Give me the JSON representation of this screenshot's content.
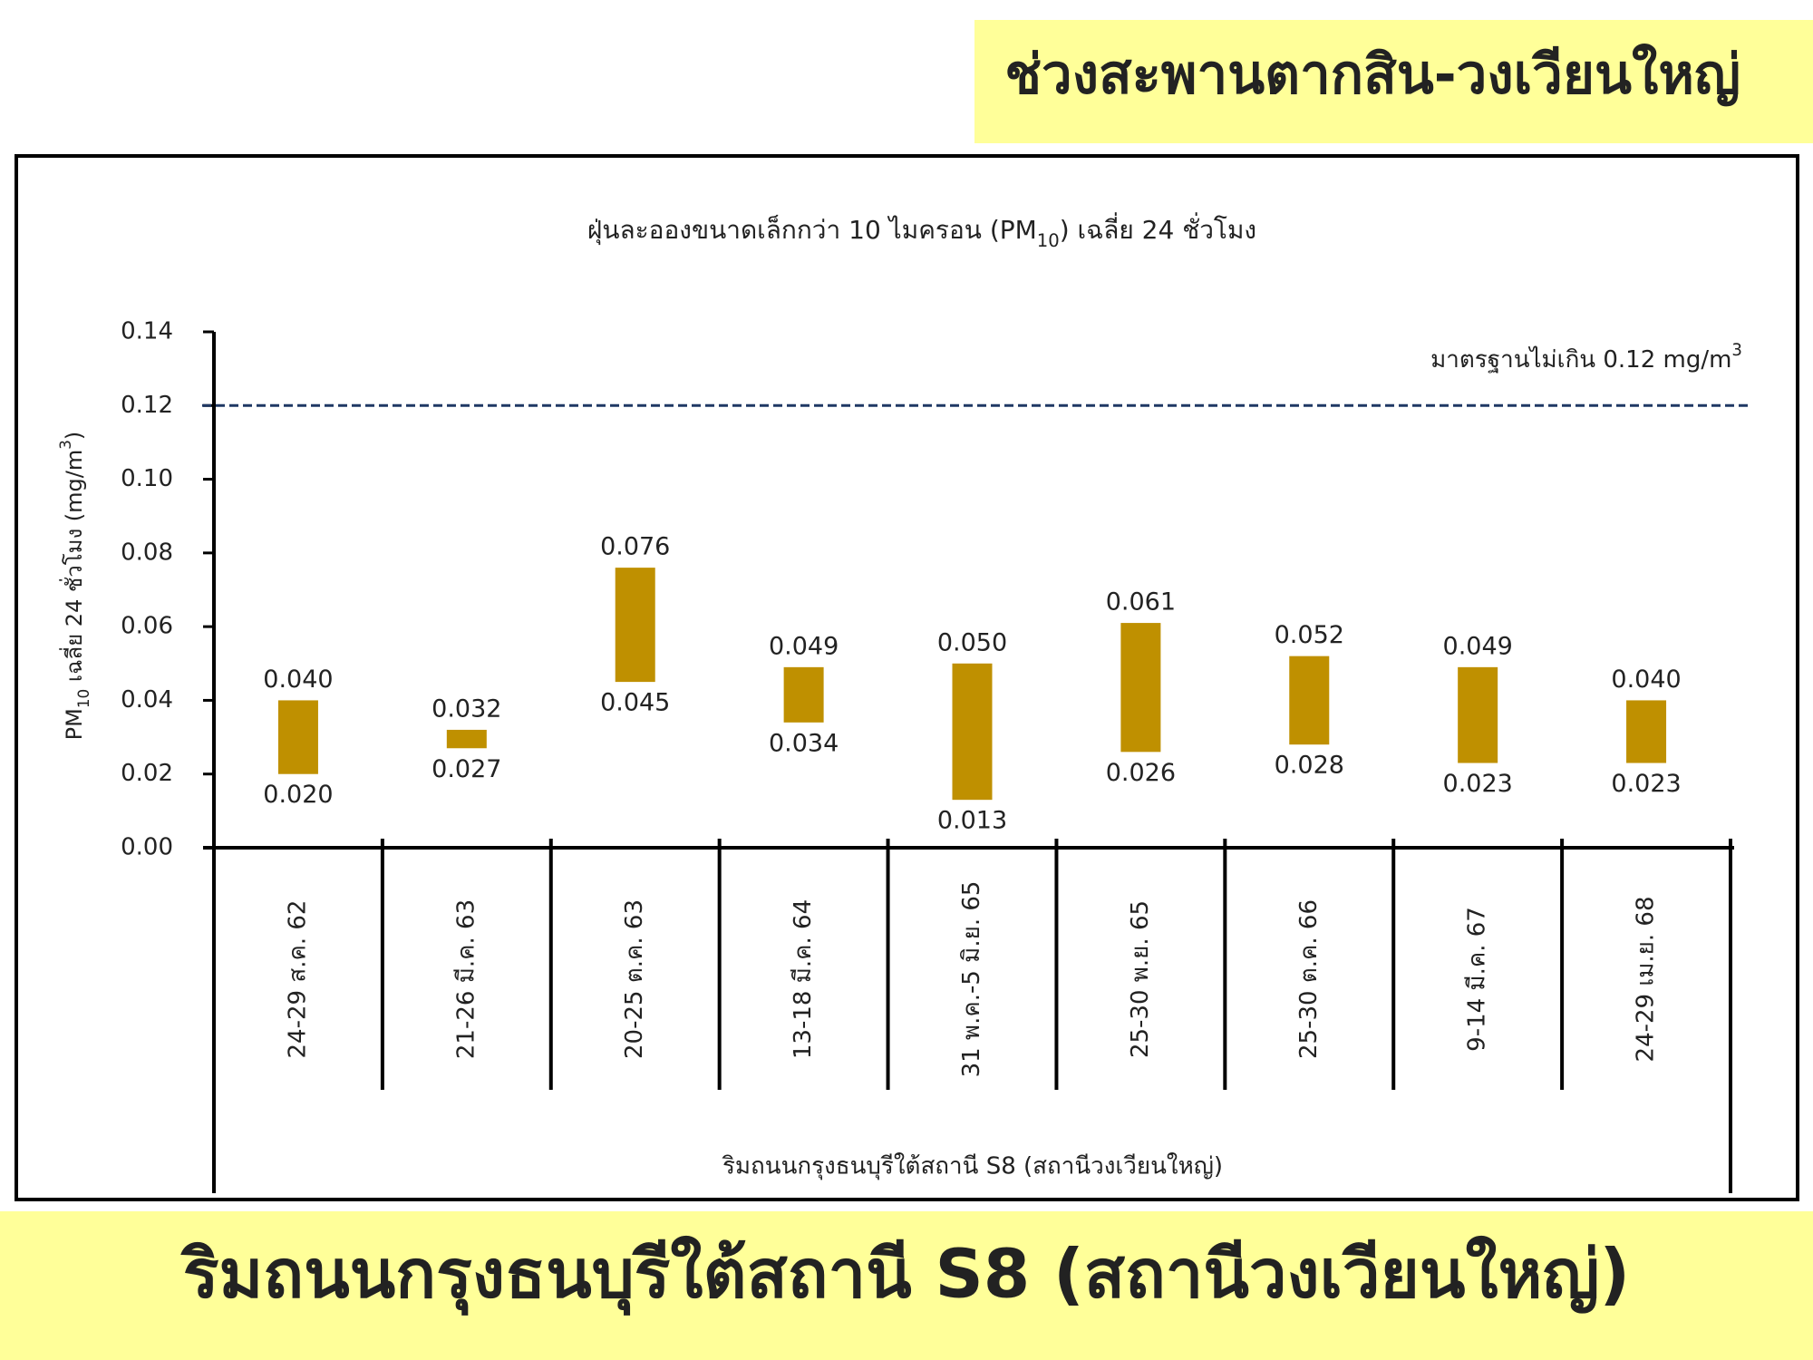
{
  "header": {
    "title": "ช่วงสะพานตากสิน-วงเวียนใหญ่"
  },
  "chart_data": {
    "type": "range",
    "title": [
      "ฝุ่นละอองขนาดเล็กกว่า 10 ไมครอน (PM",
      "10",
      ") เฉลี่ย 24 ชั่วโมง"
    ],
    "y_label": [
      "PM",
      "10",
      "  เฉลี่ย 24 ชั่วโมง (mg/m",
      "3",
      ")"
    ],
    "x_label": "ริมถนนกรุงธนบุรีใต้สถานี S8 (สถานีวงเวียนใหญ่)",
    "categories": [
      "24-29 ส.ค. 62",
      "21-26 มี.ค. 63",
      "20-25 ต.ค. 63",
      "13-18 มี.ค. 64",
      "31 พ.ค.-5 มิ.ย. 65",
      "25-30 พ.ย. 65",
      "25-30 ต.ค. 66",
      "9-14 มี.ค. 67",
      "24-29 เม.ย. 68"
    ],
    "low": [
      0.02,
      0.027,
      0.045,
      0.034,
      0.013,
      0.026,
      0.028,
      0.023,
      0.023
    ],
    "low_labels": [
      "0.020",
      "0.027",
      "0.045",
      "0.034",
      "0.013",
      "0.026",
      "0.028",
      "0.023",
      "0.023"
    ],
    "high": [
      0.04,
      0.032,
      0.076,
      0.049,
      0.05,
      0.061,
      0.052,
      0.049,
      0.04
    ],
    "high_labels": [
      "0.040",
      "0.032",
      "0.076",
      "0.049",
      "0.050",
      "0.061",
      "0.052",
      "0.049",
      "0.040"
    ],
    "color": "#bf9000",
    "ylim": [
      0,
      0.14
    ],
    "yticks": [
      {
        "value": 0,
        "label": "0.00"
      },
      {
        "value": 0.02,
        "label": "0.02"
      },
      {
        "value": 0.04,
        "label": "0.04"
      },
      {
        "value": 0.06,
        "label": "0.06"
      },
      {
        "value": 0.08,
        "label": "0.08"
      },
      {
        "value": 0.1,
        "label": "0.10"
      },
      {
        "value": 0.12,
        "label": "0.12"
      },
      {
        "value": 0.14,
        "label": "0.14"
      }
    ],
    "standard": {
      "value": 0.12,
      "label": [
        "มาตรฐานไม่เกิน 0.12 mg/m",
        "3"
      ],
      "color": "#1f3864"
    }
  },
  "footer": {
    "title": "ริมถนนกรุงธนบุรีใต้สถานี S8 (สถานีวงเวียนใหญ่)"
  }
}
